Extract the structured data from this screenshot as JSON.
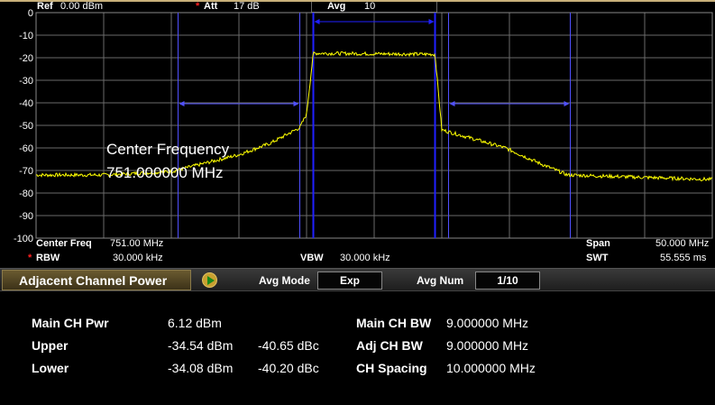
{
  "header": {
    "ref_label": "Ref",
    "ref_value": "0.00 dBm",
    "att_label": "Att",
    "att_value": "17 dB",
    "avg_label": "Avg",
    "avg_value": "10"
  },
  "footer": {
    "center_freq_label": "Center Freq",
    "center_freq_value": "751.00 MHz",
    "rbw_label": "RBW",
    "rbw_value": "30.000 kHz",
    "vbw_label": "VBW",
    "vbw_value": "30.000 kHz",
    "span_label": "Span",
    "span_value": "50.000 MHz",
    "swt_label": "SWT",
    "swt_value": "55.555 ms"
  },
  "annotation": {
    "line1": "Center Frequency",
    "line2": "751.000000 MHz"
  },
  "toolbar": {
    "title": "Adjacent Channel Power",
    "avg_mode_label": "Avg Mode",
    "avg_mode_value": "Exp",
    "avg_num_label": "Avg Num",
    "avg_num_value": "1/10"
  },
  "results": {
    "main_ch_pwr_label": "Main CH Pwr",
    "main_ch_pwr_value": "6.12 dBm",
    "upper_label": "Upper",
    "upper_dbm": "-34.54 dBm",
    "upper_dbc": "-40.65 dBc",
    "lower_label": "Lower",
    "lower_dbm": "-34.08 dBm",
    "lower_dbc": "-40.20 dBc",
    "main_ch_bw_label": "Main CH BW",
    "main_ch_bw_value": "9.000000 MHz",
    "adj_ch_bw_label": "Adj CH BW",
    "adj_ch_bw_value": "9.000000 MHz",
    "ch_spacing_label": "CH Spacing",
    "ch_spacing_value": "10.000000 MHz"
  },
  "chart_data": {
    "type": "line",
    "xlim_mhz": [
      726,
      776
    ],
    "ylim_dbm": [
      -100,
      0
    ],
    "y_ticks": [
      "0",
      "-10",
      "-20",
      "-30",
      "-40",
      "-50",
      "-60",
      "-70",
      "-80",
      "-90",
      "-100"
    ],
    "grid": true,
    "main_channel_mhz": [
      746.5,
      755.5
    ],
    "lower_channel_mhz": [
      736.5,
      745.5
    ],
    "upper_channel_mhz": [
      756.5,
      765.5
    ],
    "trace_color": "#ffff00",
    "marker_color": "#5050ff",
    "trace_points": [
      [
        726,
        -72
      ],
      [
        731,
        -72
      ],
      [
        736,
        -70.5
      ],
      [
        741,
        -63
      ],
      [
        743.3,
        -58
      ],
      [
        745.5,
        -51
      ],
      [
        746,
        -45
      ],
      [
        746.5,
        -18
      ],
      [
        755.5,
        -18.5
      ],
      [
        756,
        -52
      ],
      [
        760.7,
        -60
      ],
      [
        763.3,
        -67
      ],
      [
        765.3,
        -72
      ],
      [
        776,
        -74
      ]
    ]
  }
}
